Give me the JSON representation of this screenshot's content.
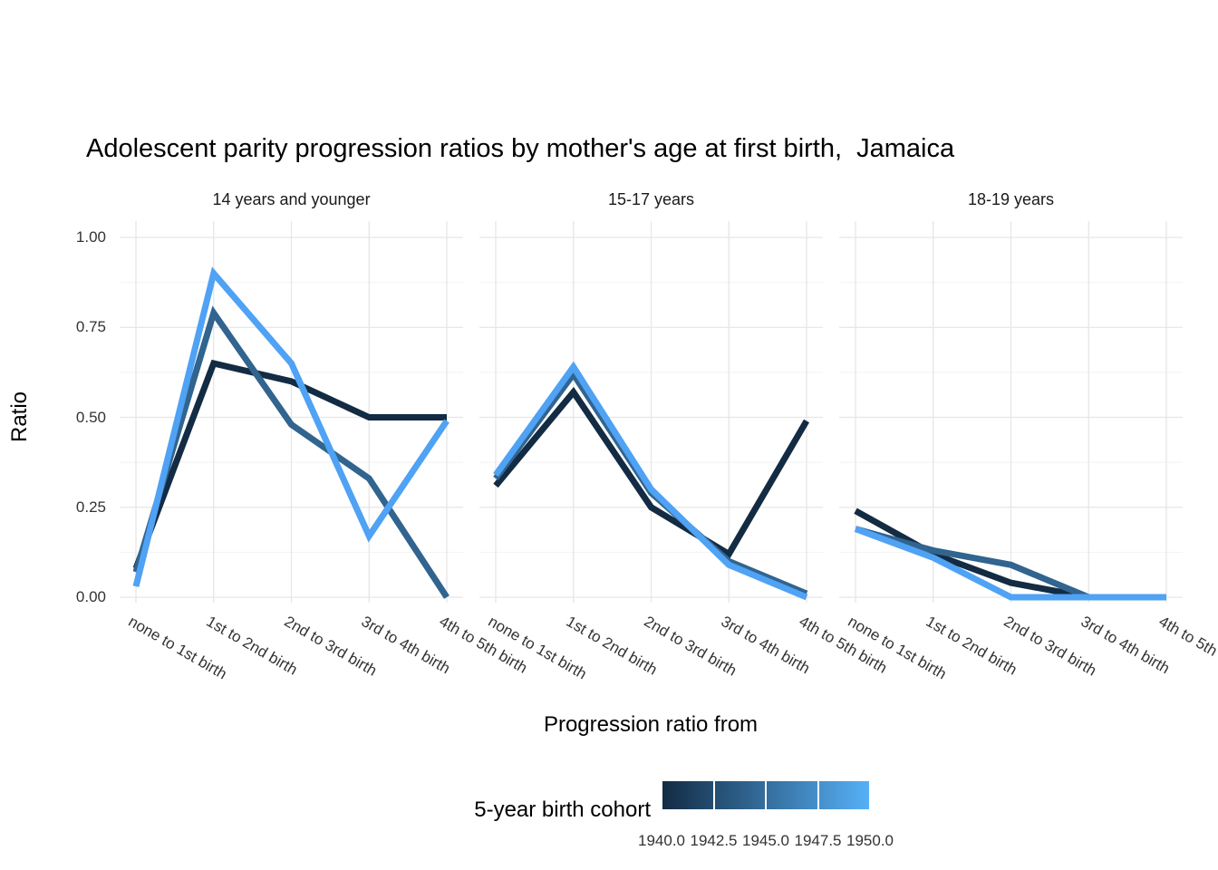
{
  "legend": {
    "title": "5-year birth cohort",
    "tick_labels": [
      "1940.0",
      "1942.5",
      "1945.0",
      "1947.5",
      "1950.0"
    ],
    "gradient_start": "#132B43",
    "gradient_end": "#56B1F7"
  },
  "chart_data": {
    "type": "line",
    "title": "Adolescent parity progression ratios by mother's age at first birth,  Jamaica",
    "xlabel": "Progression ratio from",
    "ylabel": "Ratio",
    "ylim": [
      0,
      1
    ],
    "grid": "major and minor horizontal, major vertical, light gray on white",
    "legend_position": "bottom",
    "color_scale": {
      "name": "5-year birth cohort",
      "type": "continuous",
      "domain": [
        1940,
        1950
      ],
      "from": "#132B43",
      "to": "#56B1F7"
    },
    "categories": [
      "none to 1st birth",
      "1st to 2nd birth",
      "2nd to 3rd birth",
      "3rd to 4th birth",
      "4th to 5th birth"
    ],
    "y_tick_values": [
      1.0,
      0.75,
      0.5,
      0.25,
      0.0
    ],
    "y_tick_labels": [
      "1.00",
      "0.75",
      "0.50",
      "0.25",
      "0.00"
    ],
    "facets": [
      {
        "label": "14 years and younger",
        "series": [
          {
            "name": "1940",
            "color": "#132B43",
            "values": [
              0.08,
              0.65,
              0.6,
              0.5,
              0.5
            ]
          },
          {
            "name": "1945",
            "color": "#31648F",
            "values": [
              0.07,
              0.79,
              0.48,
              0.33,
              0.0
            ]
          },
          {
            "name": "1950",
            "color": "#4FA2F4",
            "values": [
              0.03,
              0.9,
              0.65,
              0.17,
              0.49
            ]
          }
        ]
      },
      {
        "label": "15-17 years",
        "series": [
          {
            "name": "1940",
            "color": "#132B43",
            "values": [
              0.31,
              0.57,
              0.25,
              0.12,
              0.49
            ]
          },
          {
            "name": "1945",
            "color": "#31648F",
            "values": [
              0.33,
              0.62,
              0.29,
              0.1,
              0.01
            ]
          },
          {
            "name": "1950",
            "color": "#4FA2F4",
            "values": [
              0.34,
              0.64,
              0.3,
              0.09,
              0.0
            ]
          }
        ]
      },
      {
        "label": "18-19 years",
        "series": [
          {
            "name": "1940",
            "color": "#132B43",
            "values": [
              0.24,
              0.12,
              0.04,
              0.0,
              0.0
            ]
          },
          {
            "name": "1945",
            "color": "#31648F",
            "values": [
              0.19,
              0.13,
              0.09,
              0.0,
              0.0
            ]
          },
          {
            "name": "1950",
            "color": "#4FA2F4",
            "values": [
              0.19,
              0.11,
              0.0,
              0.0,
              0.0
            ]
          }
        ]
      }
    ]
  }
}
